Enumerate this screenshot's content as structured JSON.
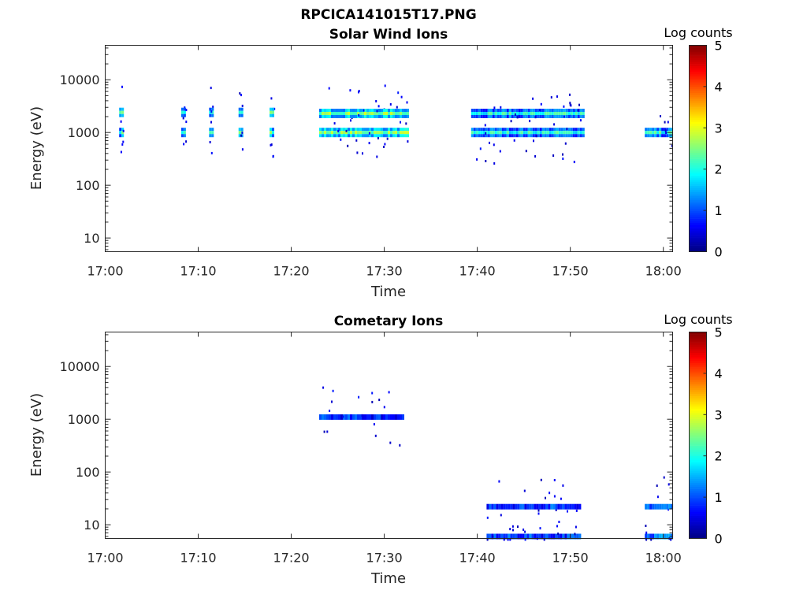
{
  "figure_title": "RPCICA141015T17.PNG",
  "chart_data": [
    {
      "type": "heatmap",
      "title": "Solar Wind Ions",
      "xlabel": "Time",
      "ylabel": "Energy (eV)",
      "x_range": [
        "17:00",
        "18:01"
      ],
      "x_ticks": [
        "17:00",
        "17:10",
        "17:20",
        "17:30",
        "17:40",
        "17:50",
        "18:00"
      ],
      "y_scale": "log",
      "y_range": [
        5.5,
        45000
      ],
      "y_ticks": [
        "10",
        "100",
        "1000",
        "10000"
      ],
      "colorbar": {
        "label": "Log counts",
        "range": [
          0,
          5
        ],
        "ticks": [
          "0",
          "1",
          "2",
          "3",
          "4",
          "5"
        ],
        "colormap": "jet"
      },
      "grid": false,
      "blocks": [
        {
          "t_start": "17:01:30",
          "t_end": "17:02:00",
          "energies_eV": [
            1000,
            2400
          ],
          "log_counts": 2.2
        },
        {
          "t_start": "17:08:10",
          "t_end": "17:08:40",
          "energies_eV": [
            1000,
            2400
          ],
          "log_counts": 2.2
        },
        {
          "t_start": "17:11:10",
          "t_end": "17:11:40",
          "energies_eV": [
            1000,
            2400
          ],
          "log_counts": 2.2
        },
        {
          "t_start": "17:14:20",
          "t_end": "17:14:50",
          "energies_eV": [
            1000,
            2400
          ],
          "log_counts": 2.2
        },
        {
          "t_start": "17:17:40",
          "t_end": "17:18:10",
          "energies_eV": [
            1000,
            2400
          ],
          "log_counts": 2.2
        },
        {
          "t_start": "17:23:00",
          "t_end": "17:32:30",
          "energies_eV": [
            1000,
            2300
          ],
          "log_counts": 2.5
        },
        {
          "t_start": "17:39:20",
          "t_end": "17:51:30",
          "energies_eV": [
            1000,
            2300
          ],
          "log_counts": 2.0
        },
        {
          "t_start": "17:58:00",
          "t_end": "18:01:00",
          "energies_eV": [
            1000
          ],
          "log_counts": 2.0
        }
      ]
    },
    {
      "type": "heatmap",
      "title": "Cometary Ions",
      "xlabel": "Time",
      "ylabel": "Energy (eV)",
      "x_range": [
        "17:00",
        "18:01"
      ],
      "x_ticks": [
        "17:00",
        "17:10",
        "17:20",
        "17:30",
        "17:40",
        "17:50",
        "18:00"
      ],
      "y_scale": "log",
      "y_range": [
        5.5,
        45000
      ],
      "y_ticks": [
        "10",
        "100",
        "1000",
        "10000"
      ],
      "colorbar": {
        "label": "Log counts",
        "range": [
          0,
          5
        ],
        "ticks": [
          "0",
          "1",
          "2",
          "3",
          "4",
          "5"
        ],
        "colormap": "jet"
      },
      "grid": false,
      "blocks": [
        {
          "t_start": "17:23:00",
          "t_end": "17:32:00",
          "energies_eV": [
            1100
          ],
          "log_counts": 0.8
        },
        {
          "t_start": "17:41:00",
          "t_end": "17:51:00",
          "energies_eV": [
            6,
            22
          ],
          "log_counts": 0.9
        },
        {
          "t_start": "17:58:00",
          "t_end": "18:01:00",
          "energies_eV": [
            6,
            22
          ],
          "log_counts": 1.2
        }
      ]
    }
  ]
}
